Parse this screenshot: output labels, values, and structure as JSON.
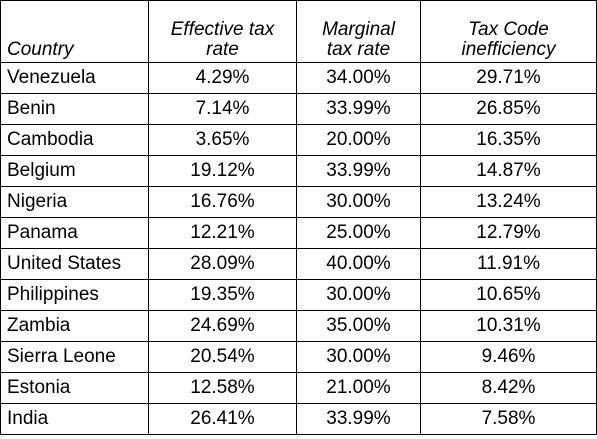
{
  "table": {
    "headers": [
      [
        "Country"
      ],
      [
        "Effective tax",
        "rate"
      ],
      [
        "Marginal",
        "tax rate"
      ],
      [
        "Tax Code",
        "inefficiency"
      ]
    ],
    "rows": [
      [
        "Venezuela",
        "4.29%",
        "34.00%",
        "29.71%"
      ],
      [
        "Benin",
        "7.14%",
        "33.99%",
        "26.85%"
      ],
      [
        "Cambodia",
        "3.65%",
        "20.00%",
        "16.35%"
      ],
      [
        "Belgium",
        "19.12%",
        "33.99%",
        "14.87%"
      ],
      [
        "Nigeria",
        "16.76%",
        "30.00%",
        "13.24%"
      ],
      [
        "Panama",
        "12.21%",
        "25.00%",
        "12.79%"
      ],
      [
        "United States",
        "28.09%",
        "40.00%",
        "11.91%"
      ],
      [
        "Philippines",
        "19.35%",
        "30.00%",
        "10.65%"
      ],
      [
        "Zambia",
        "24.69%",
        "35.00%",
        "10.31%"
      ],
      [
        "Sierra Leone",
        "20.54%",
        "30.00%",
        "9.46%"
      ],
      [
        "Estonia",
        "12.58%",
        "21.00%",
        "8.42%"
      ],
      [
        "India",
        "26.41%",
        "33.99%",
        "7.58%"
      ]
    ]
  }
}
